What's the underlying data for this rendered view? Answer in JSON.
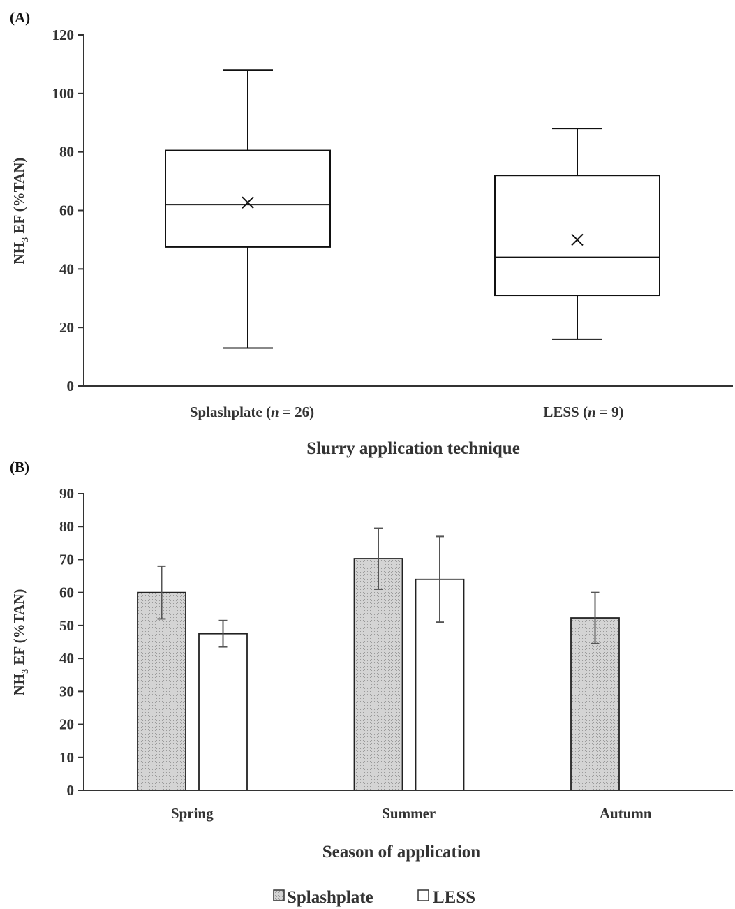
{
  "chart_data": [
    {
      "panel": "(A)",
      "type": "box",
      "ylabel": "NH3 EF (%TAN)",
      "ylabel_main": "NH",
      "ylabel_sub": "3",
      "ylabel_rest": " EF (%TAN)",
      "xlabel": "Slurry application technique",
      "ylim": [
        0,
        120
      ],
      "yticks": [
        0,
        20,
        40,
        60,
        80,
        100,
        120
      ],
      "categories": [
        {
          "label_pre": "Splashplate (",
          "label_n": "n",
          "label_post": " = 26)"
        },
        {
          "label_pre": "LESS (",
          "label_n": "n",
          "label_post": " = 9)"
        }
      ],
      "boxes": [
        {
          "whisker_low": 13,
          "q1": 47.5,
          "median": 62,
          "q3": 80.5,
          "whisker_high": 108,
          "mean": 62.7
        },
        {
          "whisker_low": 16,
          "q1": 31,
          "median": 44,
          "q3": 72,
          "whisker_high": 88,
          "mean": 50
        }
      ]
    },
    {
      "panel": "(B)",
      "type": "bar",
      "ylabel": "NH3 EF (%TAN)",
      "ylabel_main": "NH",
      "ylabel_sub": "3",
      "ylabel_rest": " EF (%TAN)",
      "xlabel": "Season of application",
      "ylim": [
        0,
        90
      ],
      "yticks": [
        0,
        10,
        20,
        30,
        40,
        50,
        60,
        70,
        80,
        90
      ],
      "categories": [
        "Spring",
        "Summer",
        "Autumn"
      ],
      "series": [
        {
          "name": "Splashplate",
          "fill": "#d0d0d0",
          "values": [
            60,
            70.3,
            52.3
          ],
          "err_low": [
            52,
            61,
            44.5
          ],
          "err_high": [
            68,
            79.5,
            60
          ]
        },
        {
          "name": "LESS",
          "fill": "#ffffff",
          "values": [
            47.5,
            64,
            null
          ],
          "err_low": [
            43.5,
            51,
            null
          ],
          "err_high": [
            51.5,
            77,
            null
          ]
        }
      ],
      "legend": {
        "placement": "bottom-center"
      }
    }
  ]
}
